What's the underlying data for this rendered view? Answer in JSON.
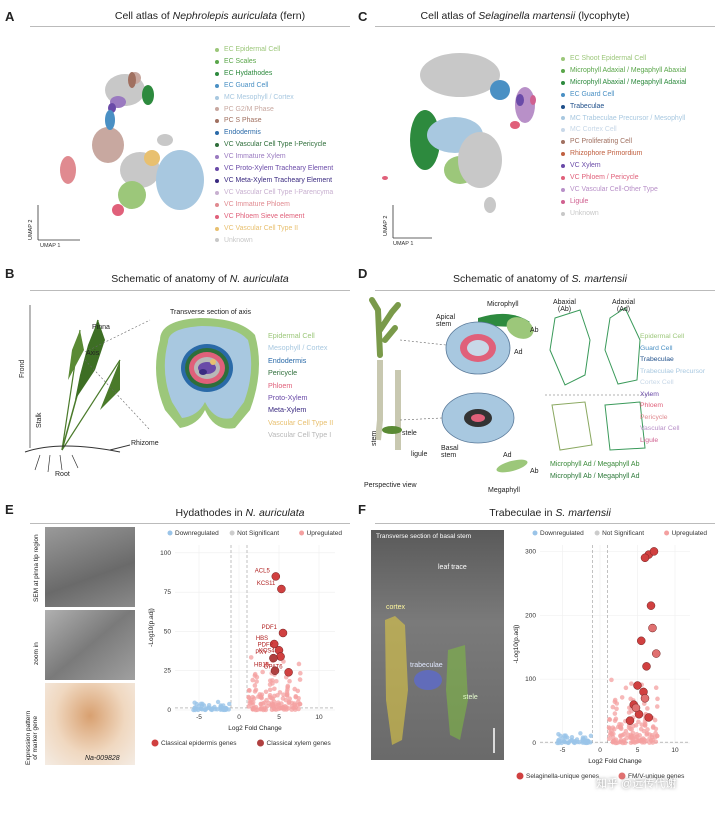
{
  "panels": {
    "A": {
      "letter": "A",
      "title_prefix": "Cell atlas of ",
      "title_species": "Nephrolepis auriculata",
      "title_suffix": " (fern)",
      "x_axis": "UMAP 1",
      "y_axis": "UMAP 2",
      "legend": [
        {
          "label": "EC Epidermal Cell",
          "color": "#9cc77a"
        },
        {
          "label": "EC Scales",
          "color": "#5aa64a"
        },
        {
          "label": "EC Hydathodes",
          "color": "#2d8a3e"
        },
        {
          "label": "EC Guard Cell",
          "color": "#4a90c4"
        },
        {
          "label": "MC Mesophyll / Cortex",
          "color": "#a8c8e0"
        },
        {
          "label": "PC G2/M Phase",
          "color": "#c8a8a0"
        },
        {
          "label": "PC S Phase",
          "color": "#a07060"
        },
        {
          "label": "Endodermis",
          "color": "#2a6aa8"
        },
        {
          "label": "VC Vascular Cell Type I-Pericycle",
          "color": "#2e6e3a"
        },
        {
          "label": "VC Immature Xylem",
          "color": "#9a7ac0"
        },
        {
          "label": "VC Proto-Xylem Tracheary Element",
          "color": "#6a4aa8"
        },
        {
          "label": "VC Meta-Xylem Tracheary Element",
          "color": "#3a2a80"
        },
        {
          "label": "VC Vascular Cell Type I-Parencyma",
          "color": "#c8b0d0"
        },
        {
          "label": "VC Immature Phloem",
          "color": "#e08a90"
        },
        {
          "label": "VC Phloem Sieve element",
          "color": "#e0607a"
        },
        {
          "label": "VC Vascular Cell Type II",
          "color": "#e8c070"
        },
        {
          "label": "Unknown",
          "color": "#c8c8c8"
        }
      ]
    },
    "C": {
      "letter": "C",
      "title_prefix": "Cell atlas of ",
      "title_species": "Selaginella martensii",
      "title_suffix": " (lycophyte)",
      "x_axis": "UMAP 1",
      "y_axis": "UMAP 2",
      "legend": [
        {
          "label": "EC Shoot Epidermal Cell",
          "color": "#9cc77a"
        },
        {
          "label": "Microphyll Adaxial / Megaphyll Abaxial",
          "color": "#5aa64a"
        },
        {
          "label": "Microphyll Abaxial / Megaphyll Adaxial",
          "color": "#2d8a3e"
        },
        {
          "label": "EC Guard Cell",
          "color": "#4a90c4"
        },
        {
          "label": "Trabeculae",
          "color": "#1f4f8a"
        },
        {
          "label": "MC Trabeculae Precursor / Mesophyll",
          "color": "#a8c8e0"
        },
        {
          "label": "MC Cortex Cell",
          "color": "#c8d8e8"
        },
        {
          "label": "PC Proliferating Cell",
          "color": "#a07060"
        },
        {
          "label": "Rhizophore Primordium",
          "color": "#c06040"
        },
        {
          "label": "VC Xylem",
          "color": "#6a4aa8"
        },
        {
          "label": "VC Phloem / Pericycle",
          "color": "#e0607a"
        },
        {
          "label": "VC Vascular Cell-Other Type",
          "color": "#b890c8"
        },
        {
          "label": "Ligule",
          "color": "#d06090"
        },
        {
          "label": "Unknown",
          "color": "#c8c8c8"
        }
      ]
    },
    "B": {
      "letter": "B",
      "title_prefix": "Schematic of anatomy of ",
      "title_species": "N. auriculata",
      "section_label": "Transverse section of axis",
      "plant_labels": {
        "pinna": "Pinna",
        "axis": "Axis",
        "frond": "Frond",
        "stalk": "Stalk",
        "root": "Root",
        "rhizome": "Rhizome"
      },
      "tissues": [
        {
          "label": "Epidermal Cell",
          "color": "#9cc77a"
        },
        {
          "label": "Mesophyll / Cortex",
          "color": "#a8c8e0"
        },
        {
          "label": "Endodermis",
          "color": "#2a6aa8"
        },
        {
          "label": "Pericycle",
          "color": "#2e6e3a"
        },
        {
          "label": "Phloem",
          "color": "#e0607a"
        },
        {
          "label": "Proto-Xylem",
          "color": "#6a4aa8"
        },
        {
          "label": "Meta-Xylem",
          "color": "#3a2a80"
        },
        {
          "label": "Vascular Cell Type II",
          "color": "#e8c070"
        },
        {
          "label": "Vascular Cell Type I",
          "color": "#b8b8b8"
        }
      ]
    },
    "D": {
      "letter": "D",
      "title_prefix": "Schematic of anatomy of ",
      "title_species": "S. martensii",
      "labels": {
        "apical_stem": "Apical\nstem",
        "microphyll": "Microphyll",
        "ab": "Ab",
        "ad": "Ad",
        "abaxial": "Abaxial\n(Ab)",
        "adaxial": "Adaxial\n(Ad)",
        "stele": "stele",
        "stem": "stem",
        "ligule": "ligule",
        "basal_stem": "Basal\nstem",
        "megaphyll": "Megaphyll",
        "ab2": "Ab",
        "ad2": "Ad",
        "perspective": "Perspective view",
        "bottom1": "Microphyll Ad / Megaphyll Ab",
        "bottom2": "Microphyll Ab / Megaphyll Ad"
      },
      "tissues": [
        {
          "label": "Epidermal Cell",
          "color": "#9cc77a"
        },
        {
          "label": "Guard Cell",
          "color": "#4a90c4"
        },
        {
          "label": "Trabeculae",
          "color": "#1f4f8a"
        },
        {
          "label": "Trabeculae Precursor",
          "color": "#a8c8e0"
        },
        {
          "label": "Cortex Cell",
          "color": "#c8d8e8"
        },
        {
          "label": "Xylem",
          "color": "#6a4aa8"
        },
        {
          "label": "Phloem",
          "color": "#e0607a"
        },
        {
          "label": "Pericycle",
          "color": "#e08a90"
        },
        {
          "label": "Vascular Cell",
          "color": "#b890c8"
        },
        {
          "label": "Ligule",
          "color": "#d06090"
        }
      ]
    },
    "E": {
      "letter": "E",
      "title_prefix": "Hydathodes in ",
      "title_species": "N. auriculata",
      "img_labels": [
        "SEM at pinna tip region",
        "zoom in",
        "Expression pattern\nof marker gene"
      ],
      "gene_id": "Na-009828",
      "legend_top": [
        "Downregulated",
        "Not Significant",
        "Upregulated"
      ],
      "legend_bottom": [
        "Classical epidermis genes",
        "Classical xylem genes"
      ],
      "ylabel": "-Log10(p.adj)",
      "xlabel": "Log2 Fold Change",
      "gene_labels": [
        "ACL5",
        "KCS11",
        "PDF1",
        "HBS",
        "PDF2",
        "KCS4",
        "PXY",
        "HB15",
        "GPAT6"
      ]
    },
    "F": {
      "letter": "F",
      "title_prefix": "Trabeculae in ",
      "title_species": "S. martensii",
      "img_title": "Transverse section of basal stem",
      "img_labels": {
        "leaf_trace": "leaf trace",
        "cortex": "cortex",
        "trabeculae": "trabeculae",
        "stele": "stele"
      },
      "legend_top": [
        "Downregulated",
        "Not Significant",
        "Upregulated"
      ],
      "legend_bottom": [
        "Selaginella-unique genes",
        "FM/V-unique genes"
      ],
      "ylabel": "-Log10(p.adj)",
      "xlabel": "Log2 Fold Change",
      "watermark": "知乎 @远传代谢"
    }
  },
  "chart_data": [
    {
      "type": "scatter",
      "panel": "E",
      "title": "Hydathodes in N. auriculata",
      "xlabel": "Log2 Fold Change",
      "ylabel": "-Log10(p.adj)",
      "xlim": [
        -8,
        12
      ],
      "ylim": [
        0,
        105
      ],
      "xticks": [
        -5,
        0,
        5,
        10
      ],
      "yticks": [
        0,
        25,
        50,
        75,
        100
      ],
      "threshold_x": [
        -1,
        1
      ],
      "threshold_y": 1.3,
      "series": [
        {
          "name": "Classical epidermis genes",
          "color": "#d04040",
          "points": [
            {
              "x": 4.6,
              "y": 85,
              "label": "ACL5"
            },
            {
              "x": 5.3,
              "y": 77,
              "label": "KCS11"
            },
            {
              "x": 5.5,
              "y": 49,
              "label": "PDF1"
            },
            {
              "x": 4.4,
              "y": 42,
              "label": "HBS"
            },
            {
              "x": 5.0,
              "y": 38,
              "label": "PDF2"
            },
            {
              "x": 5.2,
              "y": 34,
              "label": "KCS4"
            },
            {
              "x": 6.2,
              "y": 24,
              "label": "GPAT6"
            }
          ]
        },
        {
          "name": "Classical xylem genes",
          "color": "#b04040",
          "points": [
            {
              "x": 4.3,
              "y": 33,
              "label": "PXY"
            },
            {
              "x": 4.5,
              "y": 25,
              "label": "HB15"
            }
          ]
        }
      ]
    },
    {
      "type": "scatter",
      "panel": "F",
      "title": "Trabeculae in S. martensii",
      "xlabel": "Log2 Fold Change",
      "ylabel": "-Log10(p.adj)",
      "xlim": [
        -8,
        12
      ],
      "ylim": [
        0,
        310
      ],
      "xticks": [
        -5,
        0,
        5,
        10
      ],
      "yticks": [
        0,
        100,
        200,
        300
      ],
      "threshold_x": [
        -1,
        1
      ],
      "threshold_y": 1.3,
      "series": [
        {
          "name": "Selaginella-unique genes",
          "color": "#d04040",
          "points": [
            {
              "x": 6.5,
              "y": 295
            },
            {
              "x": 7.2,
              "y": 300
            },
            {
              "x": 6.0,
              "y": 290
            },
            {
              "x": 6.8,
              "y": 215
            },
            {
              "x": 5.5,
              "y": 160
            },
            {
              "x": 6.2,
              "y": 120
            },
            {
              "x": 5.0,
              "y": 90
            },
            {
              "x": 5.8,
              "y": 80
            },
            {
              "x": 4.5,
              "y": 60
            },
            {
              "x": 5.2,
              "y": 45
            },
            {
              "x": 6.5,
              "y": 40
            },
            {
              "x": 4.0,
              "y": 35
            }
          ]
        },
        {
          "name": "FM/V-unique genes",
          "color": "#e07070",
          "points": [
            {
              "x": 7.0,
              "y": 180
            },
            {
              "x": 7.5,
              "y": 140
            },
            {
              "x": 6.0,
              "y": 70
            },
            {
              "x": 4.8,
              "y": 55
            }
          ]
        }
      ]
    }
  ]
}
